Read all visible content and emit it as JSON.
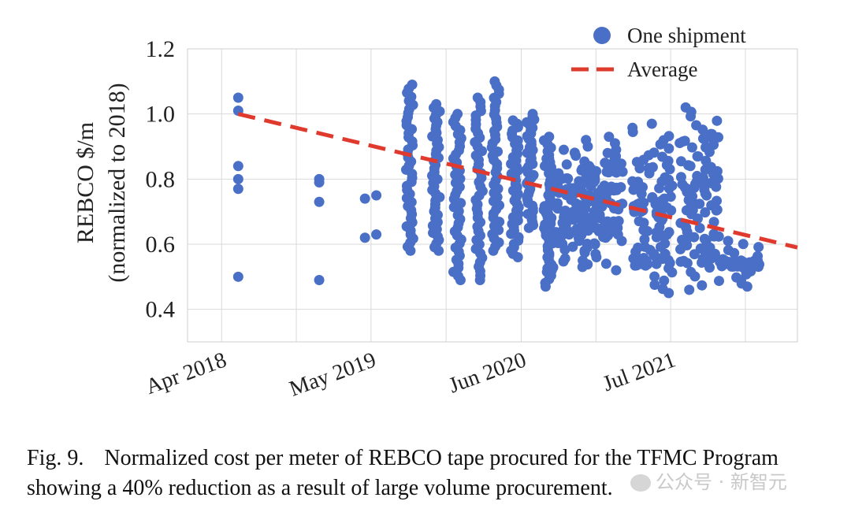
{
  "chart_data": {
    "type": "scatter",
    "ylabel_line1": "REBCO $/m",
    "ylabel_line2": "(normalized to 2018)",
    "ylim": [
      0.3,
      1.2
    ],
    "yticks": [
      0.4,
      0.6,
      0.8,
      1.0,
      1.2
    ],
    "ytick_labels": [
      "0.4",
      "0.6",
      "0.8",
      "1.0",
      "1.2"
    ],
    "x_axis": "date",
    "xlim": [
      "2018-01-01",
      "2022-06-01"
    ],
    "xticks": [
      "2018-04-01",
      "2019-05-01",
      "2020-06-01",
      "2021-07-01"
    ],
    "xtick_labels": [
      "Apr 2018",
      "May 2019",
      "Jun 2020",
      "Jul 2021"
    ],
    "grid": true,
    "legend_position": "top-right",
    "series": [
      {
        "name": "One shipment",
        "type": "scatter",
        "color": "#4a6fc7",
        "clusters": [
          {
            "date": "2018-05-15",
            "points": [
              1.05,
              1.01,
              0.84,
              0.8,
              0.77,
              0.5
            ]
          },
          {
            "date": "2018-12-15",
            "points": [
              0.8,
              0.79,
              0.73,
              0.49
            ]
          },
          {
            "date": "2019-04-15",
            "points": [
              0.74,
              0.62
            ]
          },
          {
            "date": "2019-05-15",
            "points": [
              0.75,
              0.63
            ]
          },
          {
            "date": "2019-08-10",
            "min": 0.58,
            "max": 1.09
          },
          {
            "date": "2019-10-20",
            "min": 0.58,
            "max": 1.03
          },
          {
            "date": "2019-12-15",
            "min": 0.49,
            "max": 1.0
          },
          {
            "date": "2020-02-10",
            "min": 0.49,
            "max": 1.05
          },
          {
            "date": "2020-03-25",
            "min": 0.58,
            "max": 1.1
          },
          {
            "date": "2020-05-15",
            "min": 0.56,
            "max": 0.98
          },
          {
            "date": "2020-06-25",
            "min": 0.65,
            "max": 1.0
          },
          {
            "date": "2020-08-10",
            "min": 0.47,
            "max": 0.93
          },
          {
            "date": "2020-10-01",
            "min": 0.52,
            "max": 0.89
          },
          {
            "date": "2021-01-01",
            "min": 0.52,
            "max": 0.93
          },
          {
            "date": "2021-05-15",
            "min": 0.45,
            "max": 0.97
          },
          {
            "date": "2021-09-15",
            "min": 0.46,
            "max": 1.02
          },
          {
            "date": "2022-01-01",
            "min": 0.47,
            "max": 0.61
          }
        ]
      },
      {
        "name": "Average",
        "type": "line",
        "style": "dashed",
        "color": "#e03a2e",
        "x": [
          "2018-05-15",
          "2022-06-01"
        ],
        "y": [
          1.0,
          0.59
        ]
      }
    ]
  },
  "caption": {
    "label": "Fig. 9.",
    "text": "Normalized cost per meter of REBCO tape procured for the TFMC Program showing a 40% reduction as a result of large volume procurement."
  },
  "watermark": "公众号 · 新智元"
}
